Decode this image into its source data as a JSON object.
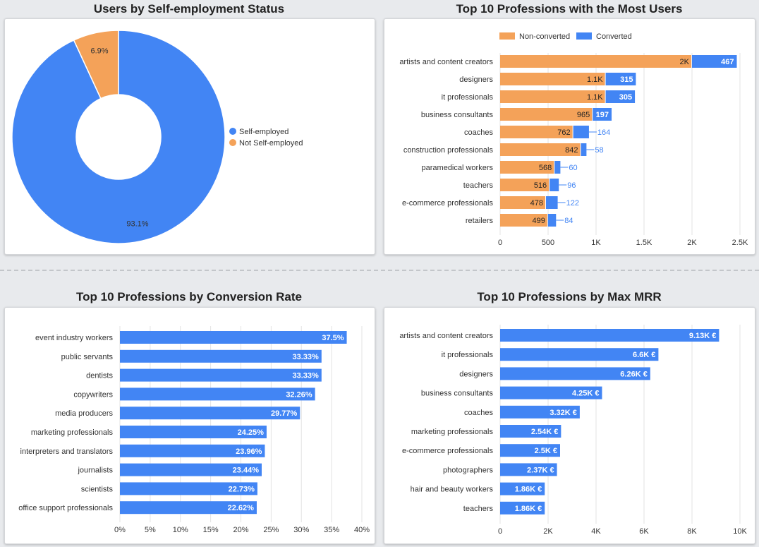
{
  "titles": {
    "donut": "Users by Self-employment Status",
    "stacked": "Top 10 Professions with the Most Users",
    "conversion": "Top 10 Professions by Conversion Rate",
    "mrr": "Top 10 Professions by Max MRR"
  },
  "colors": {
    "blue": "#4285f4",
    "orange": "#f4a259"
  },
  "chart_data": [
    {
      "type": "pie",
      "title": "Users by Self-employment Status",
      "donut": true,
      "legend": "right",
      "categories": [
        "Self-employed",
        "Not Self-employed"
      ],
      "values": [
        93.1,
        6.9
      ],
      "labels": [
        "93.1%",
        "6.9%"
      ],
      "colors": [
        "#4285f4",
        "#f4a259"
      ]
    },
    {
      "type": "bar",
      "orientation": "horizontal",
      "stacked": true,
      "title": "Top 10 Professions with the Most Users",
      "legend": "top",
      "categories": [
        "artists and content creators",
        "designers",
        "it professionals",
        "business consultants",
        "coaches",
        "construction professionals",
        "paramedical workers",
        "teachers",
        "e-commerce professionals",
        "retailers"
      ],
      "series": [
        {
          "name": "Non-converted",
          "color": "#f4a259",
          "values": [
            2000,
            1100,
            1100,
            965,
            762,
            842,
            568,
            516,
            478,
            499
          ],
          "labels": [
            "2K",
            "1.1K",
            "1.1K",
            "965",
            "762",
            "842",
            "568",
            "516",
            "478",
            "499"
          ]
        },
        {
          "name": "Converted",
          "color": "#4285f4",
          "values": [
            467,
            315,
            305,
            197,
            164,
            58,
            60,
            96,
            122,
            84
          ],
          "labels": [
            "467",
            "315",
            "305",
            "197",
            "164",
            "58",
            "60",
            "96",
            "122",
            "84"
          ]
        }
      ],
      "xlim": [
        0,
        2500
      ],
      "xticks": [
        "0",
        "500",
        "1K",
        "1.5K",
        "2K",
        "2.5K"
      ],
      "grid": true
    },
    {
      "type": "bar",
      "orientation": "horizontal",
      "title": "Top 10 Professions by Conversion Rate",
      "categories": [
        "event industry workers",
        "public servants",
        "dentists",
        "copywriters",
        "media producers",
        "marketing professionals",
        "interpreters and translators",
        "journalists",
        "scientists",
        "office support professionals"
      ],
      "values": [
        37.5,
        33.33,
        33.33,
        32.26,
        29.77,
        24.25,
        23.96,
        23.44,
        22.73,
        22.62
      ],
      "labels": [
        "37.5%",
        "33.33%",
        "33.33%",
        "32.26%",
        "29.77%",
        "24.25%",
        "23.96%",
        "23.44%",
        "22.73%",
        "22.62%"
      ],
      "xlim": [
        0,
        40
      ],
      "xticks": [
        "0%",
        "5%",
        "10%",
        "15%",
        "20%",
        "25%",
        "30%",
        "35%",
        "40%"
      ],
      "grid": true
    },
    {
      "type": "bar",
      "orientation": "horizontal",
      "title": "Top 10 Professions by Max MRR",
      "categories": [
        "artists and content creators",
        "it professionals",
        "designers",
        "business consultants",
        "coaches",
        "marketing professionals",
        "e-commerce professionals",
        "photographers",
        "hair and beauty workers",
        "teachers"
      ],
      "values": [
        9130,
        6600,
        6260,
        4250,
        3320,
        2540,
        2500,
        2370,
        1860,
        1860
      ],
      "labels": [
        "9.13K €",
        "6.6K €",
        "6.26K €",
        "4.25K €",
        "3.32K €",
        "2.54K €",
        "2.5K €",
        "2.37K €",
        "1.86K €",
        "1.86K €"
      ],
      "xlim": [
        0,
        10000
      ],
      "xticks": [
        "0",
        "2K",
        "4K",
        "6K",
        "8K",
        "10K"
      ],
      "grid": true
    }
  ]
}
